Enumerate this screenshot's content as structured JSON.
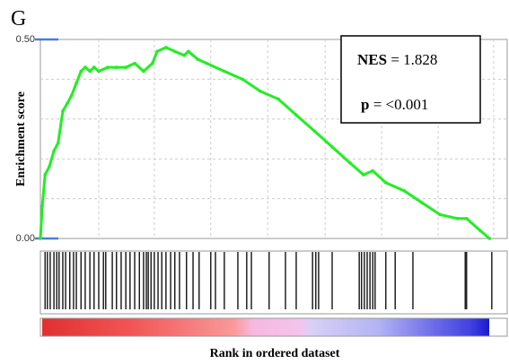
{
  "chart_data": {
    "type": "line",
    "panel_label": "G",
    "ylabel": "Enrichment score",
    "xlabel": "Rank in ordered dataset",
    "annotations": {
      "nes_label": "NES",
      "nes_value": "= 1.828",
      "p_label": "p",
      "p_value": "= <0.001"
    },
    "xlim": [
      0,
      100
    ],
    "ylim": [
      0,
      0.5
    ],
    "yticks": [
      {
        "value": 0,
        "label": "0.00"
      },
      {
        "value": 0.5,
        "label": "0.50"
      }
    ],
    "ygrid": [
      0.1,
      0.2,
      0.3,
      0.4
    ],
    "xgrid": [
      12.5,
      24.4,
      36.5,
      48.7,
      61,
      73.1,
      85.2,
      97.1
    ],
    "grid": true,
    "series": [
      {
        "name": "Enrichment score",
        "color": "#22ee22",
        "x": [
          0,
          0.4,
          1,
          1.9,
          2.9,
          3.8,
          4.8,
          5.8,
          6.7,
          7.7,
          8.7,
          9.6,
          10.6,
          11.5,
          12.5,
          14.4,
          16.3,
          18.3,
          20.2,
          22.1,
          24,
          25,
          26.9,
          28.8,
          30.8,
          31.7,
          33.7,
          35.6,
          39.4,
          43.3,
          47.1,
          51,
          54.8,
          58.7,
          62.5,
          66.3,
          69.2,
          71.2,
          74,
          77.9,
          81.7,
          85.6,
          89.4,
          91.3,
          94.2,
          96.2
        ],
        "values": [
          0,
          0.081,
          0.16,
          0.18,
          0.22,
          0.24,
          0.32,
          0.34,
          0.36,
          0.39,
          0.42,
          0.43,
          0.42,
          0.43,
          0.42,
          0.43,
          0.43,
          0.43,
          0.44,
          0.42,
          0.44,
          0.47,
          0.48,
          0.47,
          0.46,
          0.47,
          0.45,
          0.44,
          0.42,
          0.4,
          0.37,
          0.35,
          0.31,
          0.27,
          0.23,
          0.19,
          0.16,
          0.17,
          0.14,
          0.12,
          0.09,
          0.06,
          0.05,
          0.05,
          0.02,
          0
        ]
      }
    ],
    "hits": [
      1,
      1.5,
      2.1,
      2.9,
      3.5,
      4,
      4.8,
      5.4,
      6.3,
      7.1,
      7.7,
      8.7,
      9.6,
      10.6,
      11.5,
      12.5,
      13.5,
      14,
      15.4,
      16.3,
      17.3,
      18.3,
      19.2,
      20.2,
      21.2,
      22.1,
      22.7,
      23.1,
      23.7,
      24.4,
      25.2,
      26,
      26.9,
      27.9,
      28.8,
      29.8,
      31.3,
      32.7,
      34,
      36.5,
      37.5,
      39.4,
      42.3,
      44.2,
      45.2,
      49,
      52.5,
      54.8,
      58.3,
      59,
      59.6,
      62.5,
      68.3,
      68.8,
      69.4,
      70,
      70.6,
      71.2,
      71.7,
      74,
      76,
      79.8,
      91,
      91.3,
      96.7
    ]
  }
}
